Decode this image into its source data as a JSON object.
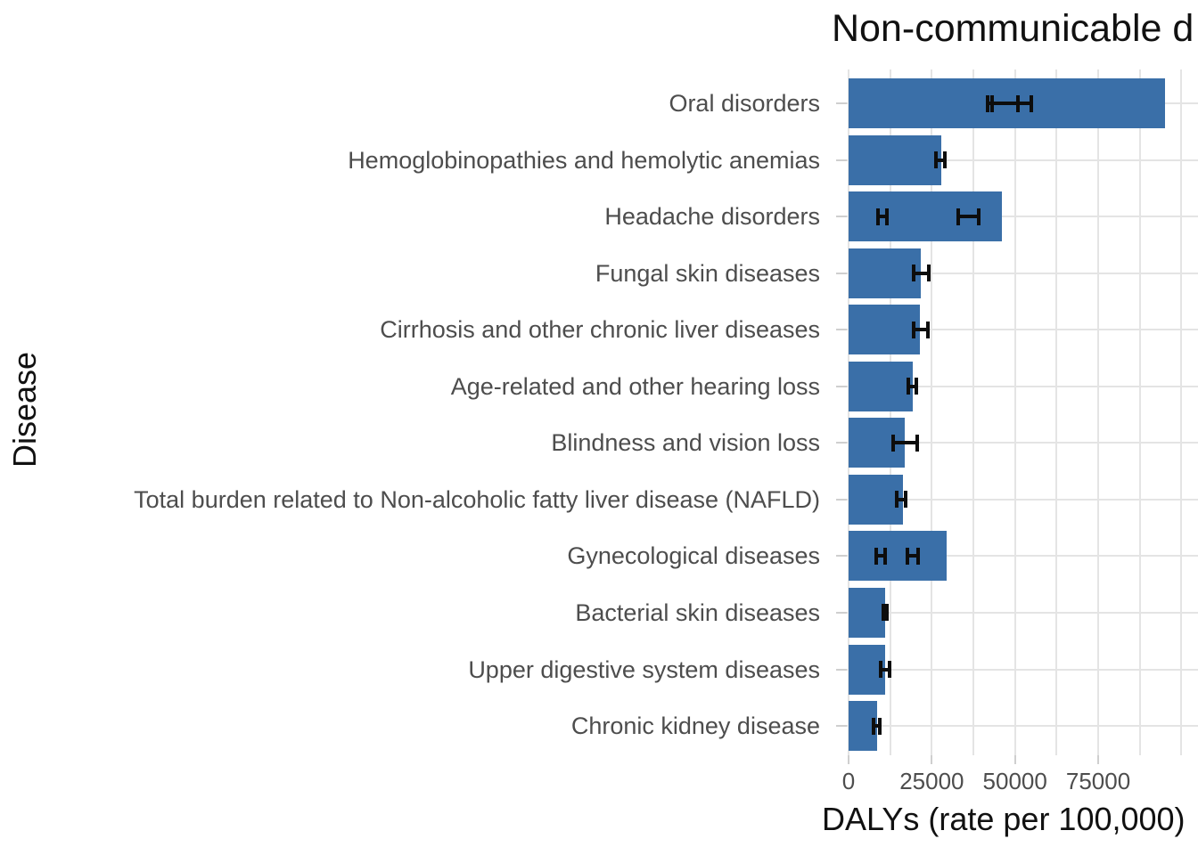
{
  "chart_data": {
    "type": "bar",
    "orientation": "horizontal",
    "title": "Non-communicable d",
    "title_note": "title is clipped at the right edge of the image",
    "xlabel": "DALYs (rate per 100,000)",
    "ylabel": "Disease",
    "x_ticks": [
      0,
      25000,
      50000,
      75000
    ],
    "x_tick_labels": [
      "0",
      "25000",
      "50000",
      "75000"
    ],
    "x_minor_gridline_step": 12500,
    "xlim_visible": [
      0,
      105000
    ],
    "grid": true,
    "legend": false,
    "bar_color": "#3a6fa8",
    "gridline_color": "#e4e4e4",
    "tick_color": "#cfcfcf",
    "tick_label_color": "#4d4d4d",
    "errorbar_color": "#0d0d0d",
    "categories": [
      "Oral disorders",
      "Hemoglobinopathies and hemolytic anemias",
      "Headache disorders",
      "Fungal skin diseases",
      "Cirrhosis and other chronic liver diseases",
      "Age-related and other hearing loss",
      "Blindness and vision loss",
      "Total burden related to Non-alcoholic fatty liver disease (NAFLD)",
      "Gynecological diseases",
      "Bacterial skin diseases",
      "Upper digestive system diseases",
      "Chronic kidney disease"
    ],
    "values": [
      95000,
      27900,
      46100,
      21700,
      21500,
      19300,
      16900,
      16300,
      29400,
      10900,
      11000,
      8700
    ],
    "error_bars": [
      [
        [
          41800,
          50800
        ],
        [
          43000,
          55000
        ]
      ],
      [
        [
          26200,
          28900
        ]
      ],
      [
        [
          8800,
          11500
        ],
        [
          32900,
          39200
        ]
      ],
      [
        [
          19600,
          24000
        ]
      ],
      [
        [
          19600,
          23800
        ]
      ],
      [
        [
          18000,
          20400
        ]
      ],
      [
        [
          13300,
          20700
        ]
      ],
      [
        [
          14500,
          17100
        ]
      ],
      [
        [
          8200,
          11100
        ],
        [
          17600,
          20900
        ]
      ],
      [
        [
          10400,
          11500
        ]
      ],
      [
        [
          9600,
          12400
        ]
      ],
      [
        [
          7500,
          9300
        ]
      ]
    ]
  }
}
